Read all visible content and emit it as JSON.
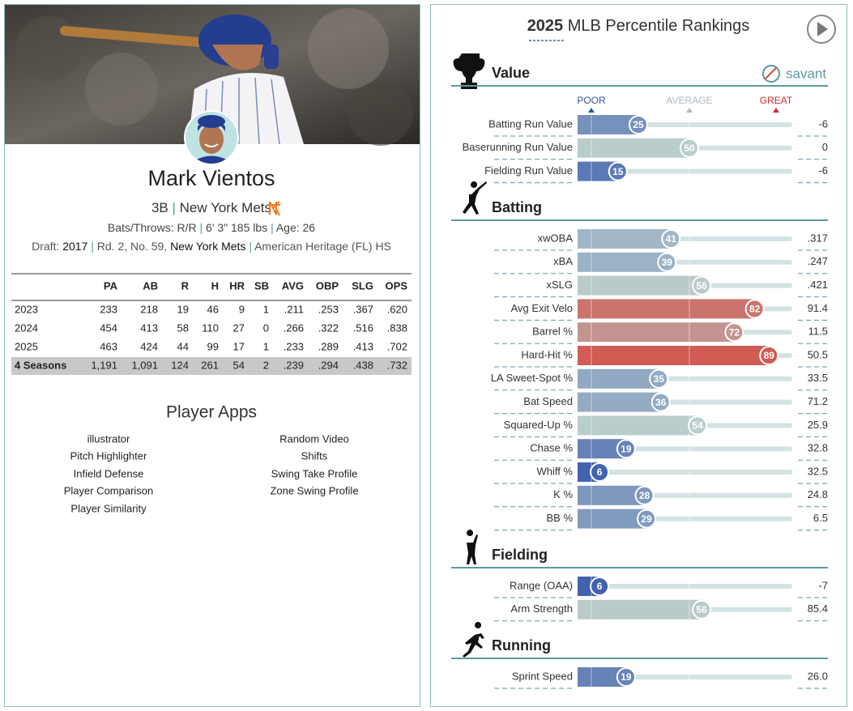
{
  "player": {
    "name": "Mark Vientos",
    "position": "3B",
    "team": "New York Mets",
    "separator": "|",
    "bats_throws": "Bats/Throws: R/R",
    "height_weight": "6' 3\" 185 lbs",
    "age": "Age: 26",
    "draft": {
      "label": "Draft:",
      "year": "2017",
      "pick": "Rd. 2, No. 59,",
      "team": "New York Mets",
      "school": "American Heritage (FL) HS"
    }
  },
  "stats_table": {
    "columns": [
      "PA",
      "AB",
      "R",
      "H",
      "HR",
      "SB",
      "AVG",
      "OBP",
      "SLG",
      "OPS"
    ],
    "rows": [
      {
        "season": "2023",
        "values": [
          "233",
          "218",
          "19",
          "46",
          "9",
          "1",
          ".211",
          ".253",
          ".367",
          ".620"
        ]
      },
      {
        "season": "2024",
        "values": [
          "454",
          "413",
          "58",
          "110",
          "27",
          "0",
          ".266",
          ".322",
          ".516",
          ".838"
        ]
      },
      {
        "season": "2025",
        "values": [
          "463",
          "424",
          "44",
          "99",
          "17",
          "1",
          ".233",
          ".289",
          ".413",
          ".702"
        ]
      },
      {
        "season": "4 Seasons",
        "values": [
          "1,191",
          "1,091",
          "124",
          "261",
          "54",
          "2",
          ".239",
          ".294",
          ".438",
          ".732"
        ]
      }
    ]
  },
  "player_apps": {
    "title": "Player Apps",
    "left": [
      "illustrator",
      "Pitch Highlighter",
      "Infield Defense",
      "Player Comparison",
      "Player Similarity"
    ],
    "right": [
      "Random Video",
      "Shifts",
      "Swing Take Profile",
      "Zone Swing Profile"
    ]
  },
  "percentile_rankings": {
    "year": "2025",
    "title": "MLB Percentile Rankings",
    "brand": "savant",
    "scale": {
      "poor": "POOR",
      "average": "AVERAGE",
      "great": "GREAT"
    },
    "sections": [
      {
        "name": "Value",
        "metrics": [
          {
            "name": "Batting Run Value",
            "percentile": 25,
            "value": "-6"
          },
          {
            "name": "Baserunning Run Value",
            "percentile": 50,
            "value": "0"
          },
          {
            "name": "Fielding Run Value",
            "percentile": 15,
            "value": "-6"
          }
        ]
      },
      {
        "name": "Batting",
        "metrics": [
          {
            "name": "xwOBA",
            "percentile": 41,
            "value": ".317"
          },
          {
            "name": "xBA",
            "percentile": 39,
            "value": ".247"
          },
          {
            "name": "xSLG",
            "percentile": 56,
            "value": ".421"
          },
          {
            "name": "Avg Exit Velo",
            "percentile": 82,
            "value": "91.4"
          },
          {
            "name": "Barrel %",
            "percentile": 72,
            "value": "11.5"
          },
          {
            "name": "Hard-Hit %",
            "percentile": 89,
            "value": "50.5"
          },
          {
            "name": "LA Sweet-Spot %",
            "percentile": 35,
            "value": "33.5"
          },
          {
            "name": "Bat Speed",
            "percentile": 36,
            "value": "71.2"
          },
          {
            "name": "Squared-Up %",
            "percentile": 54,
            "value": "25.9"
          },
          {
            "name": "Chase %",
            "percentile": 19,
            "value": "32.8"
          },
          {
            "name": "Whiff %",
            "percentile": 6,
            "value": "32.5"
          },
          {
            "name": "K %",
            "percentile": 28,
            "value": "24.8"
          },
          {
            "name": "BB %",
            "percentile": 29,
            "value": "6.5"
          }
        ]
      },
      {
        "name": "Fielding",
        "metrics": [
          {
            "name": "Range (OAA)",
            "percentile": 6,
            "value": "-7"
          },
          {
            "name": "Arm Strength",
            "percentile": 56,
            "value": "85.4"
          }
        ]
      },
      {
        "name": "Running",
        "metrics": [
          {
            "name": "Sprint Speed",
            "percentile": 19,
            "value": "26.0"
          }
        ]
      }
    ]
  }
}
